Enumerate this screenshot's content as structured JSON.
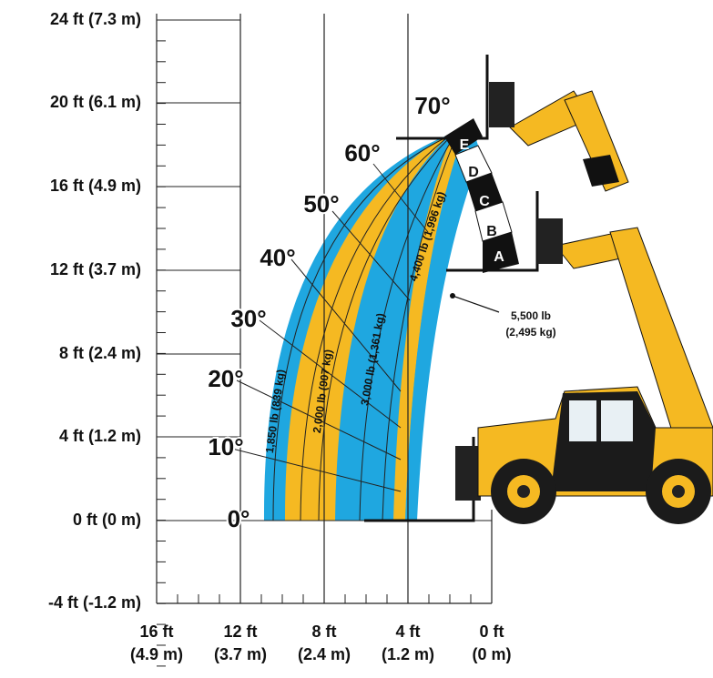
{
  "y_axis": {
    "labels": [
      "24 ft (7.3 m)",
      "20 ft (6.1 m)",
      "16 ft (4.9 m)",
      "12 ft (3.7 m)",
      "8 ft (2.4 m)",
      "4 ft (1.2 m)",
      "0 ft (0 m)",
      "-4 ft (-1.2 m)"
    ]
  },
  "x_axis": {
    "labels": [
      {
        "ft": "16 ft",
        "m": "(4.9 m)"
      },
      {
        "ft": "12 ft",
        "m": "(3.7 m)"
      },
      {
        "ft": "8 ft",
        "m": "(2.4 m)"
      },
      {
        "ft": "4 ft",
        "m": "(1.2 m)"
      },
      {
        "ft": "0 ft",
        "m": "(0 m)"
      }
    ]
  },
  "angles": [
    "0°",
    "10°",
    "20°",
    "30°",
    "40°",
    "50°",
    "60°",
    "70°"
  ],
  "zones": [
    "A",
    "B",
    "C",
    "D",
    "E"
  ],
  "loads": [
    "1,850 lb (839 kg)",
    "2,000 lb (907 kg)",
    "3,000 lb (1,361 kg)",
    "4,400 lb (1,996 kg)"
  ],
  "callout": {
    "load": "5,500 lb",
    "mass": "(2,495 kg)"
  }
}
